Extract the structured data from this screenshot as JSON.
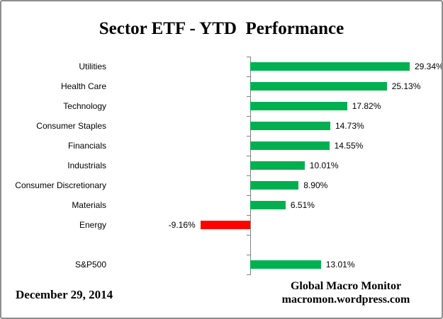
{
  "title": "Sector ETF - YTD  Performance",
  "chart_data": {
    "type": "bar",
    "orientation": "horizontal",
    "title": "Sector ETF - YTD  Performance",
    "categories": [
      "Utilities",
      "Health Care",
      "Technology",
      "Consumer Staples",
      "Financials",
      "Industrials",
      "Consumer Discretionary",
      "Materials",
      "Energy",
      "",
      "S&P500"
    ],
    "values": [
      29.34,
      25.13,
      17.82,
      14.73,
      14.55,
      10.01,
      8.9,
      6.51,
      -9.16,
      null,
      13.01
    ],
    "value_labels": [
      "29.34%",
      "25.13%",
      "17.82%",
      "14.73%",
      "14.55%",
      "10.01%",
      "8.90%",
      "6.51%",
      "-9.16%",
      "",
      "13.01%"
    ],
    "unit": "%",
    "positive_color": "#00B050",
    "negative_color": "#FF0000",
    "axis_color": "#808080",
    "legend": "none",
    "grid": "off"
  },
  "footer": {
    "date": "December 29, 2014",
    "source_line1": "Global Macro Monitor",
    "source_line2": "macromon.wordpress.com"
  }
}
